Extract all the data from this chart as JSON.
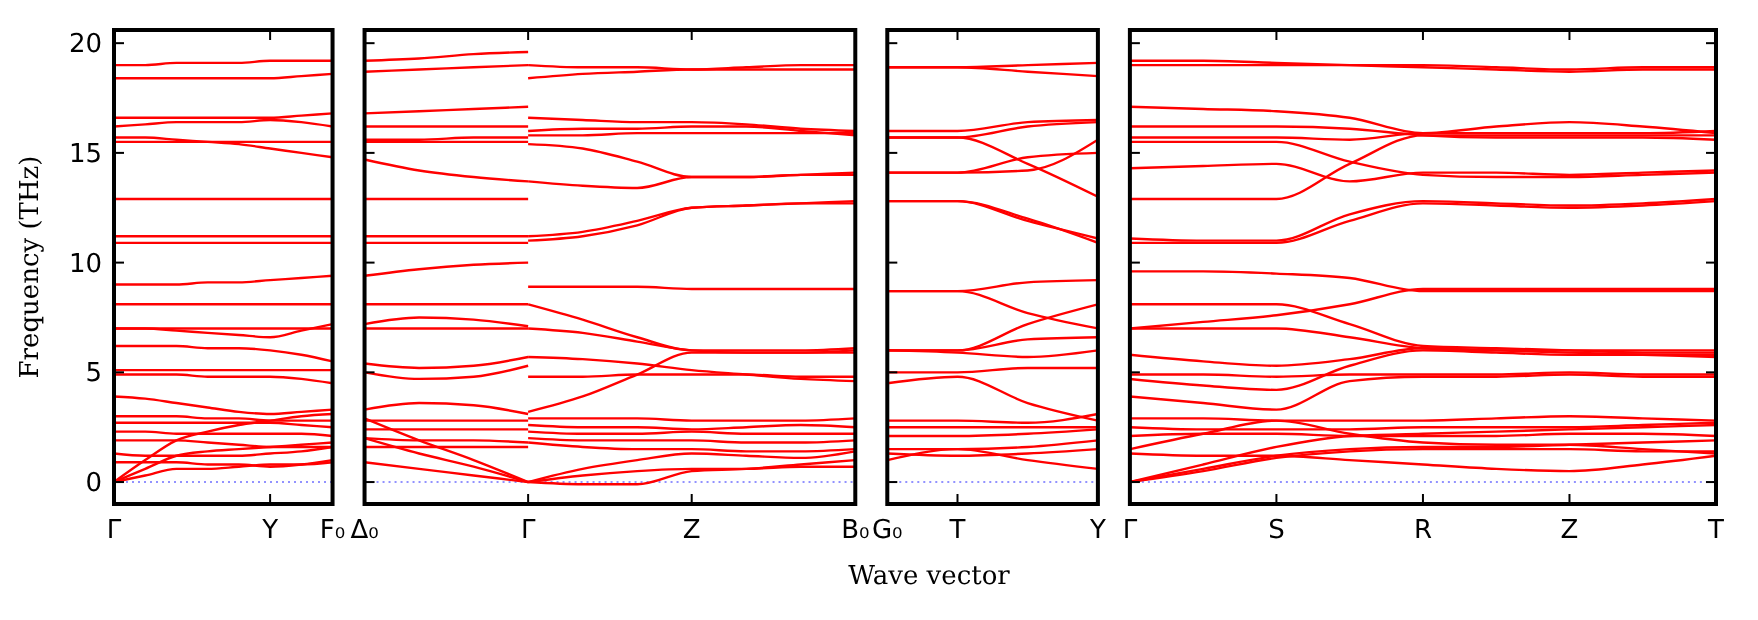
{
  "chart_data": [
    {
      "type": "line",
      "ylabel": "Frequency (THz)",
      "color": "#ff0000",
      "categories": [
        "Γ",
        null,
        null,
        null,
        null,
        "Y",
        null,
        "F₀"
      ],
      "ylim": [
        -1,
        20.6
      ],
      "yticks": [
        0,
        5,
        10,
        15,
        20
      ],
      "ref_lines": [
        {
          "axis": "y",
          "value": 0,
          "color": "#6f6fff",
          "line_style": "dotted"
        }
      ],
      "series": [
        {
          "values": [
            19.0,
            19.0,
            19.1,
            19.1,
            19.1,
            19.2,
            19.2,
            19.2
          ]
        },
        {
          "values": [
            18.4,
            18.4,
            18.4,
            18.4,
            18.4,
            18.4,
            18.5,
            18.6
          ]
        },
        {
          "values": [
            16.6,
            16.6,
            16.6,
            16.6,
            16.6,
            16.6,
            16.7,
            16.8
          ]
        },
        {
          "values": [
            16.2,
            16.3,
            16.4,
            16.4,
            16.4,
            16.5,
            16.4,
            16.2
          ]
        },
        {
          "values": [
            15.7,
            15.7,
            15.6,
            15.5,
            15.4,
            15.2,
            15.0,
            14.8
          ]
        },
        {
          "values": [
            15.5,
            15.5,
            15.5,
            15.5,
            15.5,
            15.5,
            15.5,
            15.5
          ]
        },
        {
          "values": [
            12.9,
            12.9,
            12.9,
            12.9,
            12.9,
            12.9,
            12.9,
            12.9
          ]
        },
        {
          "values": [
            11.2,
            11.2,
            11.2,
            11.2,
            11.2,
            11.2,
            11.2,
            11.2
          ]
        },
        {
          "values": [
            10.9,
            10.9,
            10.9,
            10.9,
            10.9,
            10.9,
            10.9,
            10.9
          ]
        },
        {
          "values": [
            9.0,
            9.0,
            9.0,
            9.1,
            9.1,
            9.2,
            9.3,
            9.4
          ]
        },
        {
          "values": [
            8.1,
            8.1,
            8.1,
            8.1,
            8.1,
            8.1,
            8.1,
            8.1
          ]
        },
        {
          "values": [
            7.0,
            7.0,
            6.9,
            6.8,
            6.7,
            6.6,
            6.9,
            7.2
          ]
        },
        {
          "values": [
            7.0,
            7.0,
            7.0,
            7.0,
            7.0,
            7.0,
            7.0,
            7.0
          ]
        },
        {
          "values": [
            6.2,
            6.2,
            6.2,
            6.1,
            6.1,
            6.0,
            5.8,
            5.5
          ]
        },
        {
          "values": [
            5.1,
            5.1,
            5.1,
            5.1,
            5.1,
            5.1,
            5.1,
            5.1
          ]
        },
        {
          "values": [
            4.9,
            4.9,
            4.9,
            4.8,
            4.8,
            4.8,
            4.7,
            4.5
          ]
        },
        {
          "values": [
            3.9,
            3.8,
            3.6,
            3.4,
            3.2,
            3.1,
            3.2,
            3.3
          ]
        },
        {
          "values": [
            3.0,
            3.0,
            3.0,
            2.9,
            2.9,
            2.8,
            2.8,
            2.8
          ]
        },
        {
          "values": [
            2.7,
            2.7,
            2.7,
            2.7,
            2.7,
            2.7,
            2.6,
            2.5
          ]
        },
        {
          "values": [
            2.3,
            2.3,
            2.2,
            2.2,
            2.2,
            2.2,
            2.2,
            2.1
          ]
        },
        {
          "values": [
            1.9,
            1.9,
            1.9,
            1.8,
            1.7,
            1.6,
            1.6,
            1.6
          ]
        },
        {
          "values": [
            1.3,
            1.2,
            1.2,
            1.2,
            1.2,
            1.3,
            1.4,
            1.6
          ]
        },
        {
          "values": [
            0.9,
            0.9,
            0.9,
            0.8,
            0.8,
            0.7,
            0.8,
            1.0
          ]
        },
        {
          "values": [
            0,
            0.6,
            1.2,
            1.4,
            1.5,
            1.6,
            1.7,
            1.8
          ]
        },
        {
          "values": [
            0,
            0.3,
            0.6,
            0.6,
            0.7,
            0.8,
            0.8,
            0.9
          ]
        },
        {
          "values": [
            0,
            1.0,
            1.9,
            2.3,
            2.6,
            2.8,
            3.0,
            3.1
          ]
        }
      ]
    },
    {
      "type": "line",
      "color": "#ff0000",
      "tick_labels": "x",
      "categories": [
        "Δ₀",
        null,
        null,
        "Γ",
        null,
        null,
        "Z",
        null,
        null,
        "B₀"
      ],
      "ylim": [
        -1,
        20.6
      ],
      "yticks": [
        0,
        5,
        10,
        15,
        20
      ],
      "ref_lines": [
        {
          "axis": "y",
          "value": 0,
          "color": "#6f6fff",
          "line_style": "dotted"
        }
      ],
      "series": [
        {
          "values": [
            19.2,
            19.3,
            19.5,
            19.6,
            null,
            null,
            null,
            null,
            null,
            null
          ]
        },
        {
          "values": [
            18.7,
            18.8,
            18.9,
            19.0,
            null,
            null,
            null,
            null,
            null,
            null
          ]
        },
        {
          "values": [
            16.8,
            16.9,
            17.0,
            17.1,
            null,
            null,
            null,
            null,
            null,
            null
          ]
        },
        {
          "values": [
            16.2,
            16.2,
            16.2,
            16.2,
            null,
            null,
            null,
            null,
            null,
            null
          ]
        },
        {
          "values": [
            15.6,
            15.6,
            15.7,
            15.7,
            null,
            null,
            null,
            null,
            null,
            null
          ]
        },
        {
          "values": [
            15.5,
            15.5,
            15.5,
            15.5,
            null,
            null,
            null,
            null,
            null,
            null
          ]
        },
        {
          "values": [
            14.7,
            14.2,
            13.9,
            13.7,
            null,
            null,
            null,
            null,
            null,
            null
          ]
        },
        {
          "values": [
            12.9,
            12.9,
            12.9,
            12.9,
            null,
            null,
            null,
            null,
            null,
            null
          ]
        },
        {
          "values": [
            11.2,
            11.2,
            11.2,
            11.2,
            null,
            null,
            null,
            null,
            null,
            null
          ]
        },
        {
          "values": [
            10.9,
            10.9,
            10.9,
            10.9,
            null,
            null,
            null,
            null,
            null,
            null
          ]
        },
        {
          "values": [
            9.4,
            9.7,
            9.9,
            10.0,
            null,
            null,
            null,
            null,
            null,
            null
          ]
        },
        {
          "values": [
            8.1,
            8.1,
            8.1,
            8.1,
            null,
            null,
            null,
            null,
            null,
            null
          ]
        },
        {
          "values": [
            7.2,
            7.5,
            7.4,
            7.1,
            null,
            null,
            null,
            null,
            null,
            null
          ]
        },
        {
          "values": [
            7.0,
            7.0,
            7.0,
            7.0,
            null,
            null,
            null,
            null,
            null,
            null
          ]
        },
        {
          "values": [
            5.4,
            5.2,
            5.3,
            5.7,
            null,
            null,
            null,
            null,
            null,
            null
          ]
        },
        {
          "values": [
            5.0,
            4.7,
            4.8,
            5.3,
            null,
            null,
            null,
            null,
            null,
            null
          ]
        },
        {
          "values": [
            3.3,
            3.6,
            3.5,
            3.1,
            null,
            null,
            null,
            null,
            null,
            null
          ]
        },
        {
          "values": [
            2.8,
            2.8,
            2.8,
            2.8,
            null,
            null,
            null,
            null,
            null,
            null
          ]
        },
        {
          "values": [
            2.4,
            2.4,
            2.4,
            2.4,
            null,
            null,
            null,
            null,
            null,
            null
          ]
        },
        {
          "values": [
            2.0,
            1.9,
            1.9,
            1.8,
            null,
            null,
            null,
            null,
            null,
            null
          ]
        },
        {
          "values": [
            1.6,
            1.6,
            1.6,
            1.6,
            null,
            null,
            null,
            null,
            null,
            null
          ]
        },
        {
          "values": [
            0.9,
            0.6,
            0.3,
            0,
            null,
            null,
            null,
            null,
            null,
            null
          ]
        },
        {
          "values": [
            2.0,
            1.3,
            0.7,
            0,
            null,
            null,
            null,
            null,
            null,
            null
          ]
        },
        {
          "values": [
            2.9,
            1.9,
            1.0,
            0,
            null,
            null,
            null,
            null,
            null,
            null
          ]
        },
        {
          "values": [
            null,
            null,
            null,
            18.4,
            18.6,
            18.7,
            18.8,
            18.8,
            18.8,
            18.8
          ]
        },
        {
          "values": [
            null,
            null,
            null,
            19.0,
            18.9,
            18.9,
            18.8,
            18.9,
            19.0,
            19.0
          ]
        },
        {
          "values": [
            null,
            null,
            null,
            16.6,
            16.5,
            16.4,
            16.4,
            16.3,
            16.1,
            16.0
          ]
        },
        {
          "values": [
            null,
            null,
            null,
            16.0,
            16.1,
            16.1,
            16.2,
            16.2,
            16.0,
            15.8
          ]
        },
        {
          "values": [
            null,
            null,
            null,
            15.8,
            15.8,
            15.9,
            15.9,
            15.9,
            15.9,
            15.9
          ]
        },
        {
          "values": [
            null,
            null,
            null,
            15.4,
            15.2,
            14.6,
            13.9,
            13.9,
            14.0,
            14.0
          ]
        },
        {
          "values": [
            null,
            null,
            null,
            13.7,
            13.5,
            13.4,
            13.9,
            13.9,
            14.0,
            14.1
          ]
        },
        {
          "values": [
            null,
            null,
            null,
            11.2,
            11.4,
            11.9,
            12.5,
            12.6,
            12.7,
            12.8
          ]
        },
        {
          "values": [
            null,
            null,
            null,
            11.0,
            11.2,
            11.7,
            12.5,
            12.6,
            12.7,
            12.7
          ]
        },
        {
          "values": [
            null,
            null,
            null,
            8.9,
            8.9,
            8.9,
            8.8,
            8.8,
            8.8,
            8.8
          ]
        },
        {
          "values": [
            null,
            null,
            null,
            8.1,
            7.4,
            6.6,
            6.0,
            6.0,
            6.0,
            6.1
          ]
        },
        {
          "values": [
            null,
            null,
            null,
            7.0,
            6.8,
            6.4,
            6.0,
            5.9,
            5.9,
            5.9
          ]
        },
        {
          "values": [
            null,
            null,
            null,
            4.8,
            4.8,
            4.9,
            4.9,
            4.9,
            4.8,
            4.8
          ]
        },
        {
          "values": [
            null,
            null,
            null,
            5.7,
            5.6,
            5.4,
            5.1,
            4.9,
            4.7,
            4.6
          ]
        },
        {
          "values": [
            null,
            null,
            null,
            3.2,
            3.9,
            4.9,
            5.9,
            5.9,
            5.9,
            6.0
          ]
        },
        {
          "values": [
            null,
            null,
            null,
            2.9,
            2.9,
            2.9,
            2.8,
            2.8,
            2.8,
            2.9
          ]
        },
        {
          "values": [
            null,
            null,
            null,
            2.6,
            2.5,
            2.5,
            2.4,
            2.5,
            2.6,
            2.5
          ]
        },
        {
          "values": [
            null,
            null,
            null,
            2.3,
            2.2,
            2.2,
            2.3,
            2.2,
            2.2,
            2.2
          ]
        },
        {
          "values": [
            null,
            null,
            null,
            2.0,
            1.9,
            1.9,
            1.9,
            1.8,
            1.8,
            1.9
          ]
        },
        {
          "values": [
            null,
            null,
            null,
            1.8,
            1.6,
            1.5,
            1.5,
            1.4,
            1.4,
            1.5
          ]
        },
        {
          "values": [
            null,
            null,
            null,
            0,
            0.6,
            1.0,
            1.3,
            1.2,
            1.1,
            1.4
          ]
        },
        {
          "values": [
            null,
            null,
            null,
            0,
            0.3,
            0.5,
            0.6,
            0.6,
            0.7,
            0.7
          ]
        },
        {
          "values": [
            null,
            null,
            null,
            0,
            -0.1,
            -0.1,
            0.5,
            0.6,
            0.8,
            1.0
          ]
        }
      ]
    },
    {
      "type": "line",
      "xlabel": "Wave vector",
      "color": "#ff0000",
      "tick_labels": "x",
      "categories": [
        "G₀",
        "T",
        null,
        "Y"
      ],
      "ylim": [
        -1,
        20.6
      ],
      "yticks": [
        0,
        5,
        10,
        15,
        20
      ],
      "ref_lines": [
        {
          "axis": "y",
          "value": 0,
          "color": "#6f6fff",
          "line_style": "dotted"
        }
      ],
      "series": [
        {
          "values": [
            18.9,
            18.9,
            19.0,
            19.1
          ]
        },
        {
          "values": [
            18.9,
            18.9,
            18.7,
            18.5
          ]
        },
        {
          "values": [
            16.0,
            16.0,
            16.4,
            16.5
          ]
        },
        {
          "values": [
            15.7,
            15.7,
            16.2,
            16.4
          ]
        },
        {
          "values": [
            15.7,
            15.7,
            14.5,
            13.0
          ]
        },
        {
          "values": [
            14.1,
            14.1,
            14.8,
            15.0
          ]
        },
        {
          "values": [
            14.1,
            14.1,
            14.2,
            15.6
          ]
        },
        {
          "values": [
            12.8,
            12.8,
            11.9,
            11.1
          ]
        },
        {
          "values": [
            12.8,
            12.8,
            12.0,
            10.9
          ]
        },
        {
          "values": [
            8.7,
            8.7,
            9.1,
            9.2
          ]
        },
        {
          "values": [
            8.7,
            8.7,
            7.7,
            7.0
          ]
        },
        {
          "values": [
            6.0,
            6.0,
            7.2,
            8.1
          ]
        },
        {
          "values": [
            6.0,
            6.0,
            6.5,
            6.6
          ]
        },
        {
          "values": [
            6.0,
            5.9,
            5.7,
            6.0
          ]
        },
        {
          "values": [
            5.0,
            5.0,
            5.2,
            5.2
          ]
        },
        {
          "values": [
            4.5,
            4.8,
            3.6,
            2.8
          ]
        },
        {
          "values": [
            2.8,
            2.8,
            2.7,
            3.1
          ]
        },
        {
          "values": [
            2.5,
            2.5,
            2.5,
            2.5
          ]
        },
        {
          "values": [
            2.1,
            2.1,
            2.2,
            2.4
          ]
        },
        {
          "values": [
            1.5,
            1.5,
            1.6,
            1.9
          ]
        },
        {
          "values": [
            1.0,
            1.5,
            1.0,
            0.6
          ]
        },
        {
          "values": [
            1.3,
            1.2,
            1.3,
            1.5
          ]
        }
      ]
    },
    {
      "type": "line",
      "color": "#ff0000",
      "tick_labels": "x",
      "categories": [
        "Γ",
        null,
        "S",
        null,
        "R",
        null,
        "Z",
        null,
        "T"
      ],
      "ylim": [
        -1,
        20.6
      ],
      "yticks": [
        0,
        5,
        10,
        15,
        20
      ],
      "ref_lines": [
        {
          "axis": "y",
          "value": 0,
          "color": "#6f6fff",
          "line_style": "dotted"
        }
      ],
      "series": [
        {
          "values": [
            19.2,
            19.2,
            19.1,
            19.0,
            18.9,
            18.8,
            18.7,
            18.8,
            18.8
          ]
        },
        {
          "values": [
            19.0,
            19.0,
            19.0,
            19.0,
            19.0,
            18.9,
            18.8,
            18.9,
            18.9
          ]
        },
        {
          "values": [
            17.1,
            17.0,
            16.9,
            16.6,
            15.9,
            16.2,
            16.4,
            16.2,
            15.9
          ]
        },
        {
          "values": [
            16.2,
            16.2,
            16.2,
            16.1,
            15.8,
            15.7,
            15.7,
            15.7,
            15.6
          ]
        },
        {
          "values": [
            15.7,
            15.7,
            15.7,
            15.6,
            15.9,
            15.9,
            15.9,
            15.9,
            16.0
          ]
        },
        {
          "values": [
            15.5,
            15.5,
            15.5,
            14.6,
            14.0,
            13.9,
            13.9,
            14.0,
            14.1
          ]
        },
        {
          "values": [
            14.3,
            14.4,
            14.5,
            13.7,
            14.1,
            14.1,
            14.0,
            14.1,
            14.2
          ]
        },
        {
          "values": [
            12.9,
            12.9,
            12.9,
            14.5,
            15.8,
            15.8,
            15.8,
            15.8,
            15.8
          ]
        },
        {
          "values": [
            11.1,
            11.0,
            11.0,
            12.2,
            12.8,
            12.7,
            12.6,
            12.7,
            12.9
          ]
        },
        {
          "values": [
            10.9,
            10.9,
            10.9,
            11.9,
            12.7,
            12.6,
            12.5,
            12.6,
            12.8
          ]
        },
        {
          "values": [
            9.6,
            9.6,
            9.5,
            9.3,
            8.7,
            8.7,
            8.7,
            8.7,
            8.7
          ]
        },
        {
          "values": [
            8.1,
            8.1,
            8.1,
            7.2,
            6.2,
            6.1,
            6.0,
            5.9,
            5.9
          ]
        },
        {
          "values": [
            7.0,
            7.3,
            7.6,
            8.1,
            8.8,
            8.8,
            8.8,
            8.8,
            8.8
          ]
        },
        {
          "values": [
            7.0,
            7.0,
            7.0,
            6.6,
            6.1,
            6.0,
            5.9,
            5.8,
            5.7
          ]
        },
        {
          "values": [
            5.8,
            5.5,
            5.3,
            5.6,
            6.1,
            6.0,
            6.0,
            6.0,
            6.0
          ]
        },
        {
          "values": [
            4.9,
            4.9,
            4.8,
            4.9,
            4.9,
            4.9,
            5.0,
            4.9,
            4.9
          ]
        },
        {
          "values": [
            4.7,
            4.4,
            4.2,
            5.3,
            6.0,
            5.9,
            5.8,
            5.8,
            5.8
          ]
        },
        {
          "values": [
            3.9,
            3.6,
            3.3,
            4.6,
            4.8,
            4.8,
            4.9,
            4.8,
            4.8
          ]
        },
        {
          "values": [
            2.9,
            2.9,
            2.8,
            2.8,
            2.8,
            2.9,
            3.0,
            2.9,
            2.8
          ]
        },
        {
          "values": [
            2.5,
            2.4,
            2.4,
            2.4,
            2.5,
            2.5,
            2.5,
            2.6,
            2.7
          ]
        },
        {
          "values": [
            2.1,
            2.2,
            2.2,
            2.1,
            2.1,
            2.1,
            2.2,
            2.2,
            2.1
          ]
        },
        {
          "values": [
            1.5,
            2.2,
            2.8,
            2.2,
            1.8,
            1.7,
            1.7,
            1.5,
            1.3
          ]
        },
        {
          "values": [
            1.3,
            1.2,
            1.2,
            1.0,
            0.8,
            0.6,
            0.5,
            0.8,
            1.2
          ]
        },
        {
          "values": [
            0,
            0.6,
            1.2,
            1.5,
            1.6,
            1.6,
            1.7,
            1.8,
            1.9
          ]
        },
        {
          "values": [
            0,
            0.8,
            1.6,
            2.1,
            2.2,
            2.3,
            2.4,
            2.5,
            2.6
          ]
        },
        {
          "values": [
            0,
            0.5,
            1.1,
            1.4,
            1.5,
            1.5,
            1.5,
            1.4,
            1.4
          ]
        }
      ]
    }
  ]
}
